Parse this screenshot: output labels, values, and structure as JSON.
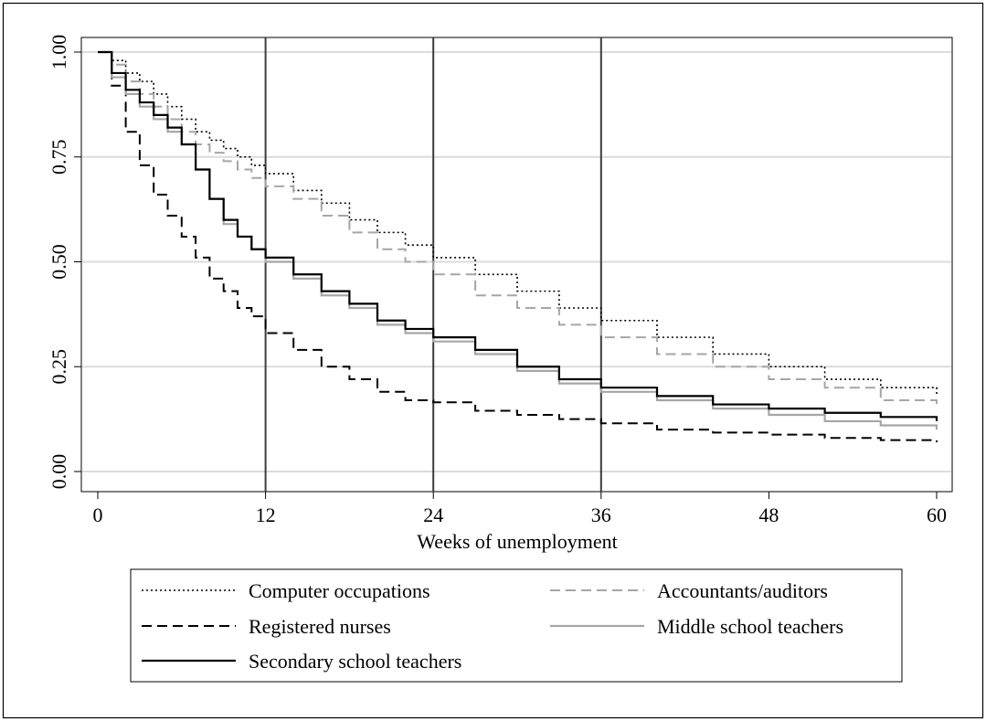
{
  "chart_data": {
    "type": "line",
    "xlabel": "Weeks of unemployment",
    "ylabel": "",
    "xlim": [
      0,
      60
    ],
    "ylim": [
      0,
      1
    ],
    "x_ticks": [
      "0",
      "12",
      "24",
      "36",
      "48",
      "60"
    ],
    "y_ticks": [
      "0.00",
      "0.25",
      "0.50",
      "0.75",
      "1.00"
    ],
    "reference_lines_x": [
      12,
      24,
      36
    ],
    "grid": "horizontal",
    "legend_position": "bottom",
    "step": true,
    "series": [
      {
        "name": "Computer occupations",
        "color": "#000000",
        "dash": "2,3",
        "width": 1.6,
        "x": [
          0,
          1,
          2,
          3,
          4,
          5,
          6,
          7,
          8,
          9,
          10,
          11,
          12,
          14,
          16,
          18,
          20,
          22,
          24,
          27,
          30,
          33,
          36,
          40,
          44,
          48,
          52,
          56,
          60
        ],
        "y": [
          1.0,
          0.98,
          0.95,
          0.93,
          0.9,
          0.87,
          0.84,
          0.81,
          0.79,
          0.77,
          0.75,
          0.73,
          0.71,
          0.67,
          0.64,
          0.6,
          0.57,
          0.54,
          0.51,
          0.47,
          0.43,
          0.39,
          0.36,
          0.32,
          0.28,
          0.25,
          0.22,
          0.2,
          0.18
        ]
      },
      {
        "name": "Accountants/auditors",
        "color": "#a6a6a6",
        "dash": "11,6",
        "width": 2,
        "x": [
          0,
          1,
          2,
          3,
          4,
          5,
          6,
          7,
          8,
          9,
          10,
          11,
          12,
          14,
          16,
          18,
          20,
          22,
          24,
          27,
          30,
          33,
          36,
          40,
          44,
          48,
          52,
          56,
          60
        ],
        "y": [
          1.0,
          0.97,
          0.93,
          0.9,
          0.87,
          0.84,
          0.81,
          0.78,
          0.76,
          0.74,
          0.72,
          0.7,
          0.68,
          0.65,
          0.61,
          0.57,
          0.53,
          0.5,
          0.47,
          0.42,
          0.39,
          0.35,
          0.32,
          0.28,
          0.25,
          0.22,
          0.2,
          0.17,
          0.16
        ]
      },
      {
        "name": "Registered nurses",
        "color": "#000000",
        "dash": "11,6",
        "width": 2,
        "x": [
          0,
          1,
          2,
          3,
          4,
          5,
          6,
          7,
          8,
          9,
          10,
          11,
          12,
          14,
          16,
          18,
          20,
          22,
          24,
          27,
          30,
          33,
          36,
          40,
          44,
          48,
          52,
          56,
          60
        ],
        "y": [
          1.0,
          0.92,
          0.81,
          0.73,
          0.66,
          0.61,
          0.56,
          0.51,
          0.46,
          0.43,
          0.39,
          0.37,
          0.33,
          0.29,
          0.25,
          0.22,
          0.19,
          0.17,
          0.165,
          0.145,
          0.135,
          0.125,
          0.115,
          0.1,
          0.093,
          0.088,
          0.08,
          0.075,
          0.07
        ]
      },
      {
        "name": "Middle school teachers",
        "color": "#a6a6a6",
        "dash": "",
        "width": 2.2,
        "x": [
          0,
          1,
          2,
          3,
          4,
          5,
          6,
          7,
          8,
          9,
          10,
          11,
          12,
          14,
          16,
          18,
          20,
          22,
          24,
          27,
          30,
          33,
          36,
          40,
          44,
          48,
          52,
          56,
          60
        ],
        "y": [
          1.0,
          0.94,
          0.9,
          0.87,
          0.84,
          0.81,
          0.78,
          0.72,
          0.65,
          0.59,
          0.56,
          0.53,
          0.5,
          0.46,
          0.42,
          0.39,
          0.35,
          0.33,
          0.31,
          0.28,
          0.24,
          0.21,
          0.19,
          0.17,
          0.15,
          0.135,
          0.12,
          0.11,
          0.1
        ]
      },
      {
        "name": "Secondary school teachers",
        "color": "#000000",
        "dash": "",
        "width": 2.2,
        "x": [
          0,
          1,
          2,
          3,
          4,
          5,
          6,
          7,
          8,
          9,
          10,
          11,
          12,
          14,
          16,
          18,
          20,
          22,
          24,
          27,
          30,
          33,
          36,
          40,
          44,
          48,
          52,
          56,
          60
        ],
        "y": [
          1.0,
          0.95,
          0.91,
          0.88,
          0.85,
          0.82,
          0.78,
          0.72,
          0.65,
          0.6,
          0.56,
          0.53,
          0.51,
          0.47,
          0.43,
          0.4,
          0.36,
          0.34,
          0.32,
          0.29,
          0.25,
          0.22,
          0.2,
          0.18,
          0.16,
          0.15,
          0.14,
          0.13,
          0.12
        ]
      }
    ]
  }
}
